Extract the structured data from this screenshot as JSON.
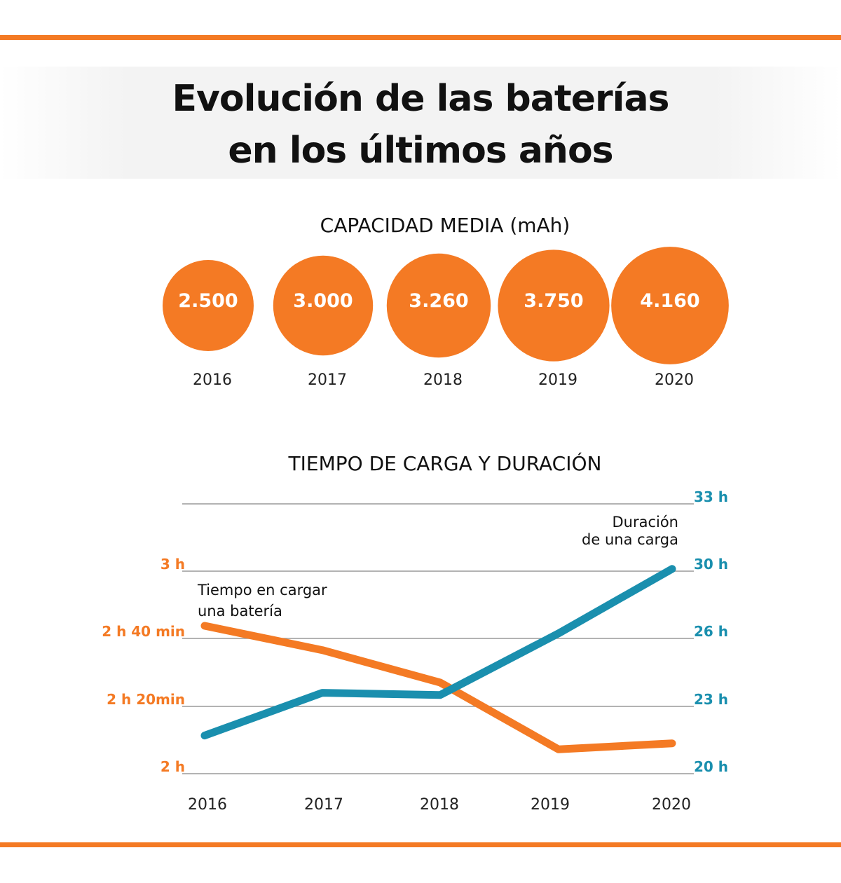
{
  "title": {
    "line1": "Evolución de las baterías",
    "line2": "en los últimos años"
  },
  "colors": {
    "orange": "#f47a24",
    "blue": "#1a8fae",
    "grid": "#9a9a9a"
  },
  "chart_data": [
    {
      "type": "bubble",
      "title": "CAPACIDAD MEDIA  (mAh)",
      "categories": [
        "2016",
        "2017",
        "2018",
        "2019",
        "2020"
      ],
      "values": [
        2500,
        3000,
        3260,
        3750,
        4160
      ],
      "labels": [
        "2.500",
        "3.000",
        "3.260",
        "3.750",
        "4.160"
      ],
      "color": "#f47a24"
    },
    {
      "type": "line",
      "title": "TIEMPO DE CARGA Y DURACIÓN",
      "categories": [
        "2016",
        "2017",
        "2018",
        "2019",
        "2020"
      ],
      "grid": true,
      "left_axis": {
        "ticks": [
          2,
          2.333,
          2.667,
          3
        ],
        "tick_labels": [
          "2 h",
          "2 h 20min",
          "2 h 40 min",
          "3 h"
        ],
        "color": "#f47a24"
      },
      "right_axis": {
        "ticks": [
          20,
          23,
          26,
          30,
          33
        ],
        "tick_labels": [
          "20 h",
          "23 h",
          "26 h",
          "30 h",
          "33 h"
        ],
        "color": "#1a8fae"
      },
      "series": [
        {
          "name": "Tiempo en cargar una batería",
          "name_lines": [
            "Tiempo en cargar",
            "una batería"
          ],
          "axis": "left",
          "unit": "h",
          "values": [
            2.73,
            2.61,
            2.45,
            2.12,
            2.15
          ],
          "color": "#f47a24"
        },
        {
          "name": "Duración de una carga",
          "name_lines": [
            "Duración",
            "de una carga"
          ],
          "axis": "right",
          "unit": "h",
          "values": [
            21.7,
            23.6,
            23.5,
            26.3,
            30.1
          ],
          "color": "#1a8fae"
        }
      ]
    }
  ]
}
